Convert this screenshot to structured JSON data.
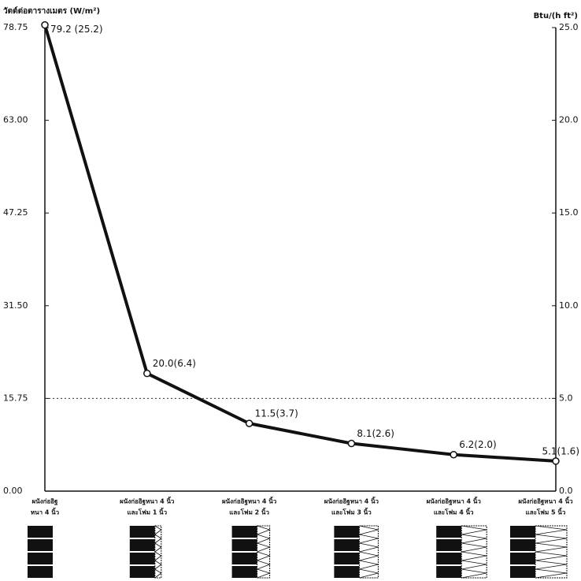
{
  "chart_data": {
    "type": "line",
    "ylabel": "วัตต์ต่อตารางเมตร (W/m²)",
    "y2label": "Btu/(h ft²)",
    "categories": [
      [
        "ผนังก่ออิฐ",
        "หนา 4 นิ้ว"
      ],
      [
        "ผนังก่ออิฐหนา 4 นิ้ว",
        "และโฟม 1 นิ้ว"
      ],
      [
        "ผนังก่ออิฐหนา 4 นิ้ว",
        "และโฟม 2 นิ้ว"
      ],
      [
        "ผนังก่ออิฐหนา 4 นิ้ว",
        "และโฟม 3 นิ้ว"
      ],
      [
        "ผนังก่ออิฐหนา 4 นิ้ว",
        "และโฟม 4 นิ้ว"
      ],
      [
        "ผนังก่ออิฐหนา 4 นิ้ว",
        "และโฟม 5 นิ้ว"
      ]
    ],
    "series": [
      {
        "color": "#111111",
        "values": [
          79.2,
          20.0,
          11.5,
          8.1,
          6.2,
          5.1
        ],
        "value_labels": [
          "79.2 (25.2)",
          "20.0(6.4)",
          "11.5(3.7)",
          "8.1(2.6)",
          "6.2(2.0)",
          "5.1(1.6)"
        ]
      }
    ],
    "ylim": [
      0,
      78.75
    ],
    "yticks": [
      {
        "value": 0,
        "label": "0.00"
      },
      15.75,
      {
        "value": 31.5,
        "label": "31.50"
      },
      47.25,
      {
        "value": 63,
        "label": "63.00"
      },
      78.75
    ],
    "y2lim": [
      0,
      25
    ],
    "y2ticks": [
      {
        "value": 0,
        "label": "0.0"
      },
      {
        "value": 5,
        "label": "5.0"
      },
      {
        "value": 10,
        "label": "10.0"
      },
      {
        "value": 15,
        "label": "15.0"
      },
      {
        "value": 20,
        "label": "20.0"
      },
      {
        "value": 25,
        "label": "25.0"
      }
    ],
    "reference_line": 15.75
  }
}
